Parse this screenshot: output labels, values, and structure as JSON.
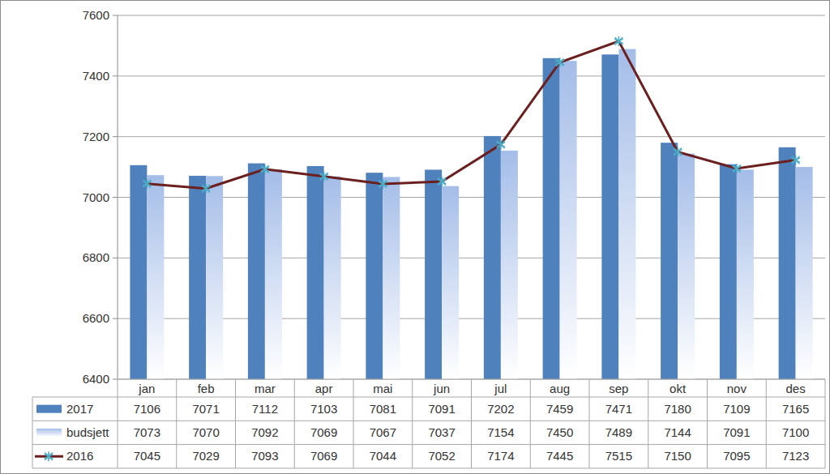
{
  "chart_data": {
    "type": "bar",
    "categories": [
      "jan",
      "feb",
      "mar",
      "apr",
      "mai",
      "jun",
      "jul",
      "aug",
      "sep",
      "okt",
      "nov",
      "des"
    ],
    "series": [
      {
        "name": "2017",
        "type": "bar",
        "color": "#4f81bd",
        "values": [
          7106,
          7071,
          7112,
          7103,
          7081,
          7091,
          7202,
          7459,
          7471,
          7180,
          7109,
          7165
        ]
      },
      {
        "name": "budsjett",
        "type": "bar",
        "color": "#a4bde8",
        "values": [
          7073,
          7070,
          7092,
          7069,
          7067,
          7037,
          7154,
          7450,
          7489,
          7144,
          7091,
          7100
        ]
      },
      {
        "name": "2016",
        "type": "line",
        "color": "#6b1f1f",
        "marker": "star",
        "values": [
          7045,
          7029,
          7093,
          7069,
          7044,
          7052,
          7174,
          7445,
          7515,
          7150,
          7095,
          7123
        ]
      }
    ],
    "ylim": [
      6400,
      7600
    ],
    "yticks": [
      6400,
      6600,
      6800,
      7000,
      7200,
      7400,
      7600
    ],
    "grid": true,
    "legend": "bottom"
  }
}
